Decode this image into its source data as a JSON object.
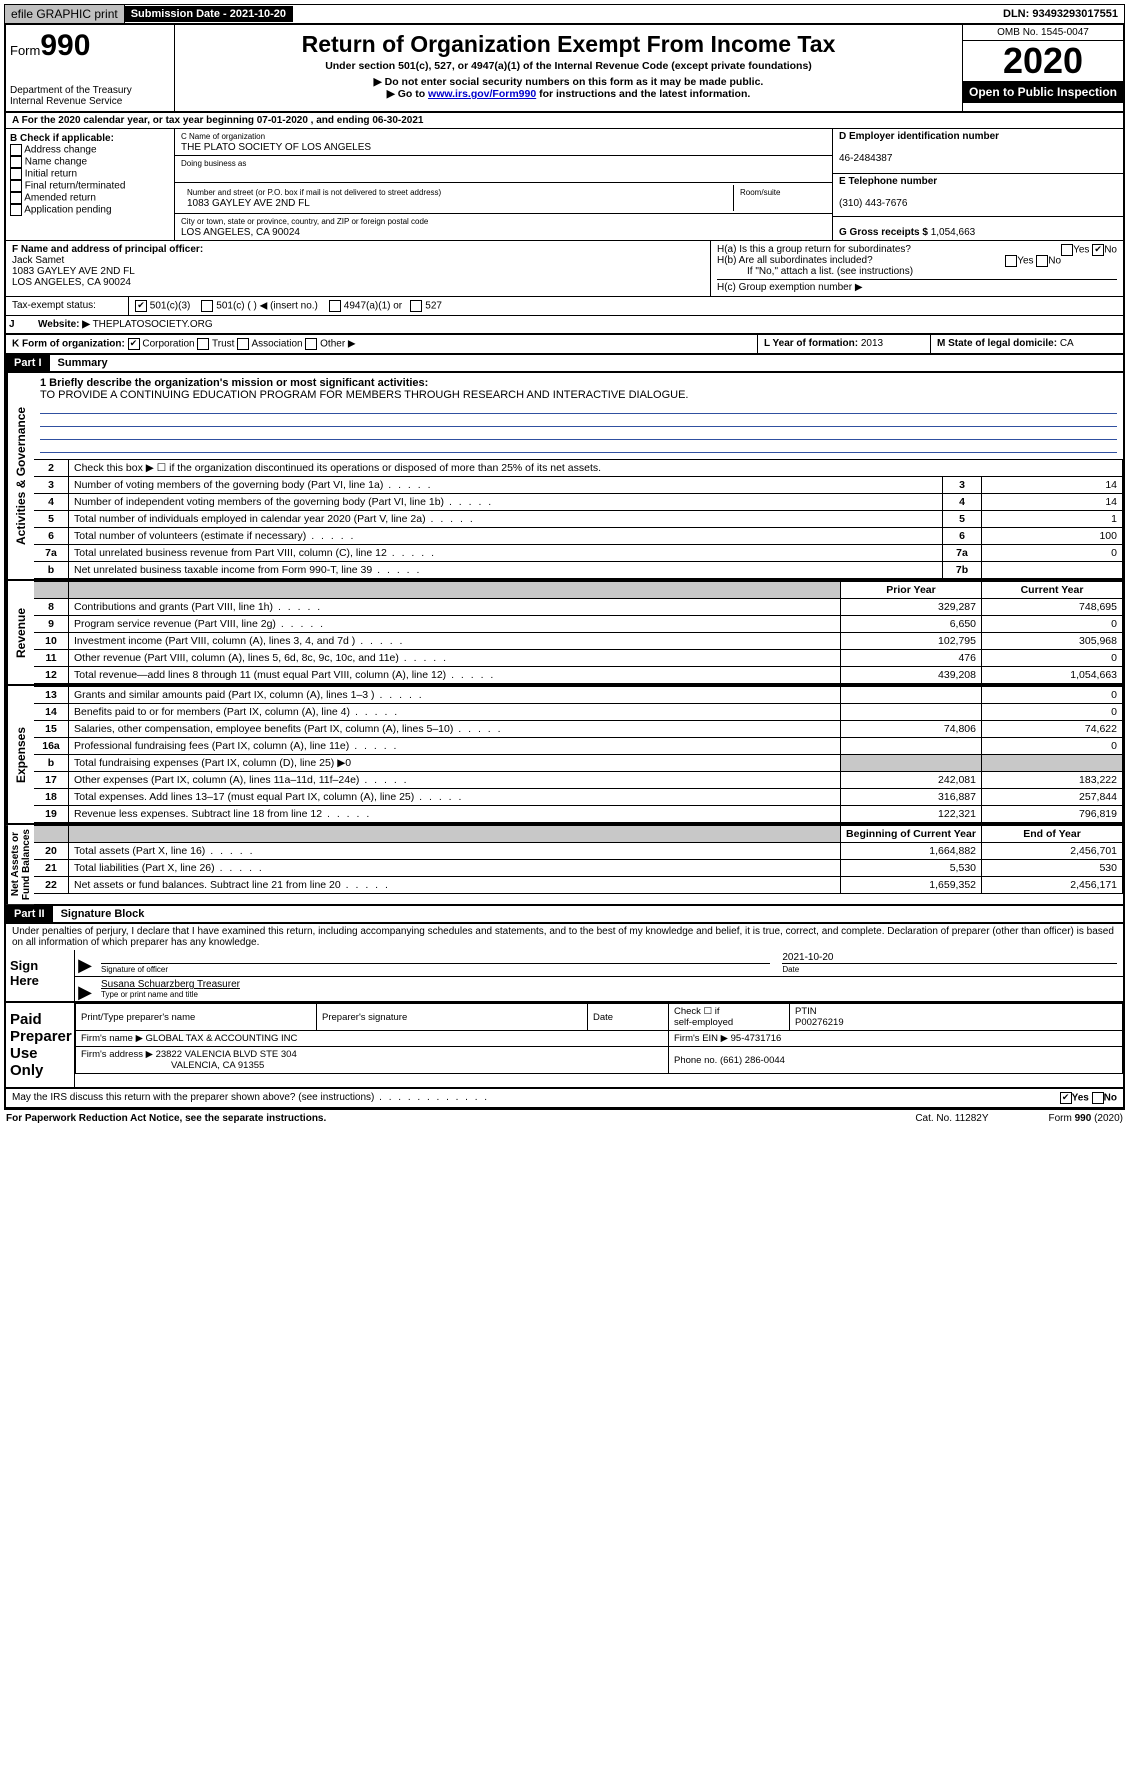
{
  "top": {
    "efile": "efile GRAPHIC print",
    "submission": "Submission Date - 2021-10-20",
    "dln": "DLN: 93493293017551"
  },
  "header": {
    "form_prefix": "Form",
    "form_number": "990",
    "dept": "Department of the Treasury\nInternal Revenue Service",
    "title": "Return of Organization Exempt From Income Tax",
    "subtitle": "Under section 501(c), 527, or 4947(a)(1) of the Internal Revenue Code (except private foundations)",
    "note1": "▶ Do not enter social security numbers on this form as it may be made public.",
    "note2_pre": "▶ Go to ",
    "note2_link": "www.irs.gov/Form990",
    "note2_post": " for instructions and the latest information.",
    "omb": "OMB No. 1545-0047",
    "year": "2020",
    "otp": "Open to Public Inspection"
  },
  "A": {
    "text": "A For the 2020 calendar year, or tax year beginning 07-01-2020    , and ending 06-30-2021"
  },
  "B": {
    "title": "B Check if applicable:",
    "items": [
      "Address change",
      "Name change",
      "Initial return",
      "Final return/terminated",
      "Amended return",
      "Application pending"
    ]
  },
  "C": {
    "name_label": "C Name of organization",
    "name": "THE PLATO SOCIETY OF LOS ANGELES",
    "dba_label": "Doing business as",
    "addr_label": "Number and street (or P.O. box if mail is not delivered to street address)",
    "room_label": "Room/suite",
    "addr": "1083 GAYLEY AVE 2ND FL",
    "city_label": "City or town, state or province, country, and ZIP or foreign postal code",
    "city": "LOS ANGELES, CA  90024"
  },
  "D": {
    "label": "D Employer identification number",
    "value": "46-2484387"
  },
  "E": {
    "label": "E Telephone number",
    "value": "(310) 443-7676"
  },
  "G": {
    "label": "G Gross receipts $",
    "value": "1,054,663"
  },
  "F": {
    "label": "F  Name and address of principal officer:",
    "name": "Jack Samet",
    "addr1": "1083 GAYLEY AVE 2ND FL",
    "addr2": "LOS ANGELES, CA  90024"
  },
  "H": {
    "a": "H(a)  Is this a group return for subordinates?",
    "b": "H(b)  Are all subordinates included?",
    "b_note": "If \"No,\" attach a list. (see instructions)",
    "c": "H(c)  Group exemption number ▶",
    "yes": "Yes",
    "no": "No"
  },
  "I": {
    "label": "Tax-exempt status:",
    "opts": [
      "501(c)(3)",
      "501(c) (  ) ◀ (insert no.)",
      "4947(a)(1) or",
      "527"
    ]
  },
  "J": {
    "label": "J",
    "text": "Website: ▶",
    "value": "THEPLATOSOCIETY.ORG"
  },
  "K": {
    "label": "K Form of organization:",
    "opts": [
      "Corporation",
      "Trust",
      "Association",
      "Other ▶"
    ]
  },
  "L": {
    "label": "L Year of formation:",
    "value": "2013"
  },
  "M": {
    "label": "M State of legal domicile:",
    "value": "CA"
  },
  "partI": {
    "tag": "Part I",
    "title": "Summary",
    "mission_label": "1  Briefly describe the organization's mission or most significant activities:",
    "mission": "TO PROVIDE A CONTINUING EDUCATION PROGRAM FOR MEMBERS THROUGH RESEARCH AND INTERACTIVE DIALOGUE."
  },
  "gov_lines": [
    {
      "n": "2",
      "label": "Check this box ▶ ☐  if the organization discontinued its operations or disposed of more than 25% of its net assets.",
      "box": "",
      "val": ""
    },
    {
      "n": "3",
      "label": "Number of voting members of the governing body (Part VI, line 1a)",
      "box": "3",
      "val": "14"
    },
    {
      "n": "4",
      "label": "Number of independent voting members of the governing body (Part VI, line 1b)",
      "box": "4",
      "val": "14"
    },
    {
      "n": "5",
      "label": "Total number of individuals employed in calendar year 2020 (Part V, line 2a)",
      "box": "5",
      "val": "1"
    },
    {
      "n": "6",
      "label": "Total number of volunteers (estimate if necessary)",
      "box": "6",
      "val": "100"
    },
    {
      "n": "7a",
      "label": "Total unrelated business revenue from Part VIII, column (C), line 12",
      "box": "7a",
      "val": "0"
    },
    {
      "n": "b",
      "label": "Net unrelated business taxable income from Form 990-T, line 39",
      "box": "7b",
      "val": ""
    }
  ],
  "col_headers": {
    "prior": "Prior Year",
    "current": "Current Year"
  },
  "revenue": [
    {
      "n": "8",
      "label": "Contributions and grants (Part VIII, line 1h)",
      "p": "329,287",
      "c": "748,695"
    },
    {
      "n": "9",
      "label": "Program service revenue (Part VIII, line 2g)",
      "p": "6,650",
      "c": "0"
    },
    {
      "n": "10",
      "label": "Investment income (Part VIII, column (A), lines 3, 4, and 7d )",
      "p": "102,795",
      "c": "305,968"
    },
    {
      "n": "11",
      "label": "Other revenue (Part VIII, column (A), lines 5, 6d, 8c, 9c, 10c, and 11e)",
      "p": "476",
      "c": "0"
    },
    {
      "n": "12",
      "label": "Total revenue—add lines 8 through 11 (must equal Part VIII, column (A), line 12)",
      "p": "439,208",
      "c": "1,054,663"
    }
  ],
  "expenses": [
    {
      "n": "13",
      "label": "Grants and similar amounts paid (Part IX, column (A), lines 1–3 )",
      "p": "",
      "c": "0"
    },
    {
      "n": "14",
      "label": "Benefits paid to or for members (Part IX, column (A), line 4)",
      "p": "",
      "c": "0"
    },
    {
      "n": "15",
      "label": "Salaries, other compensation, employee benefits (Part IX, column (A), lines 5–10)",
      "p": "74,806",
      "c": "74,622"
    },
    {
      "n": "16a",
      "label": "Professional fundraising fees (Part IX, column (A), line 11e)",
      "p": "",
      "c": "0"
    },
    {
      "n": "b",
      "label": "Total fundraising expenses (Part IX, column (D), line 25) ▶0",
      "p": "shade",
      "c": "shade"
    },
    {
      "n": "17",
      "label": "Other expenses (Part IX, column (A), lines 11a–11d, 11f–24e)",
      "p": "242,081",
      "c": "183,222"
    },
    {
      "n": "18",
      "label": "Total expenses. Add lines 13–17 (must equal Part IX, column (A), line 25)",
      "p": "316,887",
      "c": "257,844"
    },
    {
      "n": "19",
      "label": "Revenue less expenses. Subtract line 18 from line 12",
      "p": "122,321",
      "c": "796,819"
    }
  ],
  "net_headers": {
    "beg": "Beginning of Current Year",
    "end": "End of Year"
  },
  "netassets": [
    {
      "n": "20",
      "label": "Total assets (Part X, line 16)",
      "p": "1,664,882",
      "c": "2,456,701"
    },
    {
      "n": "21",
      "label": "Total liabilities (Part X, line 26)",
      "p": "5,530",
      "c": "530"
    },
    {
      "n": "22",
      "label": "Net assets or fund balances. Subtract line 21 from line 20",
      "p": "1,659,352",
      "c": "2,456,171"
    }
  ],
  "partII": {
    "tag": "Part II",
    "title": "Signature Block",
    "perjury": "Under penalties of perjury, I declare that I have examined this return, including accompanying schedules and statements, and to the best of my knowledge and belief, it is true, correct, and complete. Declaration of preparer (other than officer) is based on all information of which preparer has any knowledge."
  },
  "sign": {
    "here": "Sign Here",
    "sig_label": "Signature of officer",
    "date": "2021-10-20",
    "date_label": "Date",
    "name": "Susana Schuarzberg Treasurer",
    "name_label": "Type or print name and title"
  },
  "paid": {
    "label": "Paid Preparer Use Only",
    "h1": "Print/Type preparer's name",
    "h2": "Preparer's signature",
    "h3": "Date",
    "h4_a": "Check ☐ if",
    "h4_b": "self-employed",
    "h5": "PTIN",
    "ptin": "P00276219",
    "firm_name_l": "Firm's name    ▶",
    "firm_name": "GLOBAL TAX & ACCOUNTING INC",
    "firm_ein_l": "Firm's EIN ▶",
    "firm_ein": "95-4731716",
    "firm_addr_l": "Firm's address ▶",
    "firm_addr1": "23822 VALENCIA BLVD STE 304",
    "firm_addr2": "VALENCIA, CA  91355",
    "phone_l": "Phone no.",
    "phone": "(661) 286-0044"
  },
  "bottom": {
    "discuss": "May the IRS discuss this return with the preparer shown above? (see instructions)",
    "yes": "Yes",
    "no": "No",
    "pra": "For Paperwork Reduction Act Notice, see the separate instructions.",
    "cat": "Cat. No. 11282Y",
    "form": "Form 990 (2020)"
  }
}
